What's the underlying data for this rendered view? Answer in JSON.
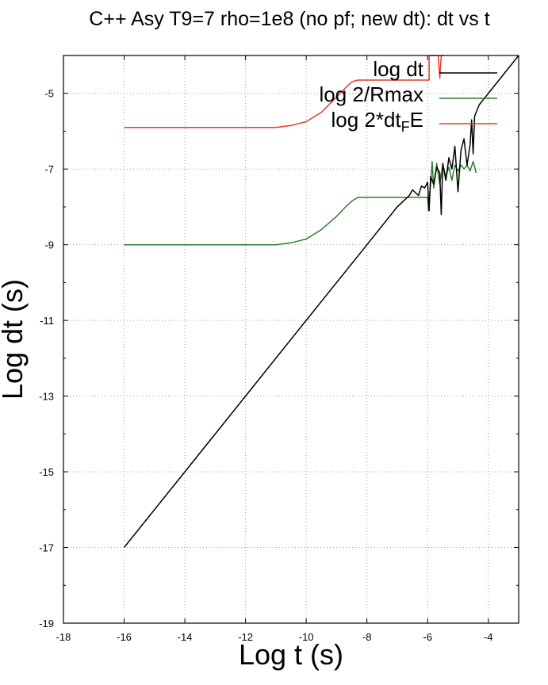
{
  "chart_data": {
    "type": "line",
    "title": "C++ Asy T9=7 rho=1e8 (no pf; new dt): dt vs t",
    "xlabel": "Log t (s)",
    "ylabel": "Log dt (s)",
    "xlim": [
      -18,
      -3
    ],
    "ylim": [
      -19,
      -4
    ],
    "xticks": [
      -18,
      -16,
      -14,
      -12,
      -10,
      -8,
      -6,
      -4
    ],
    "yticks": [
      -19,
      -17,
      -15,
      -13,
      -11,
      -9,
      -7,
      -5
    ],
    "grid": true,
    "legend_position": "top-right",
    "series": [
      {
        "name": "log dt",
        "color": "#000000",
        "x": [
          -16.0,
          -14.0,
          -12.0,
          -10.0,
          -8.0,
          -7.0,
          -6.6,
          -6.5,
          -6.3,
          -6.2,
          -6.1,
          -6.0,
          -5.95,
          -5.9,
          -5.8,
          -5.7,
          -5.6,
          -5.55,
          -5.5,
          -5.4,
          -5.3,
          -5.2,
          -5.1,
          -5.0,
          -4.9,
          -4.8,
          -4.7,
          -4.6,
          -4.55,
          -4.5,
          -4.45,
          -4.4,
          -4.3,
          -3.0
        ],
        "y": [
          -17.0,
          -15.0,
          -13.0,
          -11.0,
          -9.0,
          -8.0,
          -7.7,
          -7.55,
          -7.7,
          -7.45,
          -7.5,
          -7.35,
          -8.1,
          -7.2,
          -7.4,
          -6.95,
          -7.1,
          -8.2,
          -6.85,
          -7.3,
          -6.7,
          -7.0,
          -6.4,
          -7.6,
          -6.5,
          -6.2,
          -6.9,
          -6.35,
          -5.7,
          -6.6,
          -5.6,
          -5.5,
          -5.3,
          -4.0
        ]
      },
      {
        "name": "log 2/Rmax",
        "color": "#2e7d2e",
        "x": [
          -16.0,
          -12.0,
          -11.0,
          -10.5,
          -10.0,
          -9.5,
          -9.0,
          -8.7,
          -8.5,
          -8.3,
          -7.0,
          -6.2,
          -6.0,
          -5.97,
          -5.95,
          -5.9,
          -5.85,
          -5.8,
          -5.7,
          -5.6,
          -5.5,
          -5.4,
          -5.3,
          -5.2,
          -5.1,
          -5.0,
          -4.9,
          -4.8,
          -4.7,
          -4.6,
          -4.5,
          -4.4
        ],
        "y": [
          -9.0,
          -9.0,
          -9.0,
          -8.95,
          -8.85,
          -8.6,
          -8.25,
          -8.0,
          -7.85,
          -7.75,
          -7.75,
          -7.75,
          -7.75,
          -8.1,
          -7.8,
          -7.4,
          -6.8,
          -7.5,
          -6.85,
          -7.4,
          -6.9,
          -7.2,
          -6.95,
          -7.3,
          -6.9,
          -7.05,
          -6.9,
          -7.0,
          -6.9,
          -7.05,
          -6.8,
          -7.1
        ]
      },
      {
        "name": "log 2*dt_FE",
        "color": "#e8382a",
        "x": [
          -16.0,
          -12.0,
          -11.0,
          -10.5,
          -10.0,
          -9.5,
          -9.0,
          -8.7,
          -8.5,
          -8.3,
          -7.0,
          -6.0,
          -5.95,
          -5.95,
          -5.9,
          -5.7,
          -5.65,
          -5.6,
          -5.55,
          -5.5,
          -5.45
        ],
        "y": [
          -5.9,
          -5.9,
          -5.9,
          -5.85,
          -5.75,
          -5.5,
          -5.1,
          -4.85,
          -4.7,
          -4.65,
          -4.65,
          -4.65,
          -4.65,
          -4.0,
          -4.0,
          -4.0,
          -4.0,
          -4.6,
          -4.0,
          -4.0,
          -4.0
        ]
      }
    ],
    "legend": {
      "entries": [
        {
          "label": "log dt",
          "color": "#000000"
        },
        {
          "label": "log 2/Rmax",
          "color": "#2e7d2e"
        },
        {
          "label_main": "log 2*dt",
          "label_sub": "F",
          "label_tail": "E",
          "color": "#e8382a"
        }
      ]
    }
  }
}
